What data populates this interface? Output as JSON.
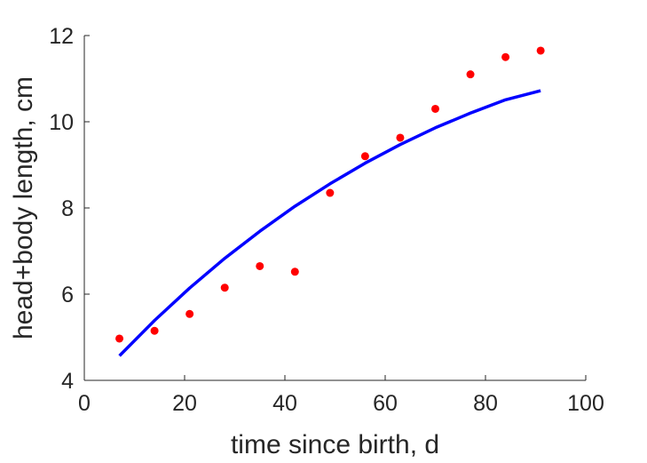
{
  "chart_data": {
    "type": "scatter",
    "xlabel": "time since birth, d",
    "ylabel": "head+body length, cm",
    "xlim": [
      0,
      100
    ],
    "ylim": [
      4,
      12
    ],
    "xticks": [
      0,
      20,
      40,
      60,
      80,
      100
    ],
    "yticks": [
      4,
      6,
      8,
      10,
      12
    ],
    "xtick_labels": [
      "0",
      "20",
      "40",
      "60",
      "80",
      "100"
    ],
    "ytick_labels": [
      "4",
      "6",
      "8",
      "10",
      "12"
    ],
    "grid": false,
    "series": [
      {
        "kind": "scatter",
        "color": "#ff0000",
        "x": [
          7,
          14,
          21,
          28,
          35,
          42,
          49,
          56,
          63,
          70,
          77,
          84,
          91
        ],
        "y": [
          4.97,
          5.15,
          5.54,
          6.15,
          6.65,
          6.52,
          8.35,
          9.2,
          9.63,
          10.3,
          11.1,
          11.5,
          11.65
        ]
      },
      {
        "kind": "line",
        "color": "#0000ff",
        "x": [
          7,
          14,
          21,
          28,
          35,
          42,
          49,
          56,
          63,
          70,
          77,
          84,
          91
        ],
        "y": [
          4.57,
          5.39,
          6.14,
          6.83,
          7.46,
          8.04,
          8.56,
          9.04,
          9.47,
          9.86,
          10.2,
          10.51,
          10.72
        ]
      }
    ]
  }
}
